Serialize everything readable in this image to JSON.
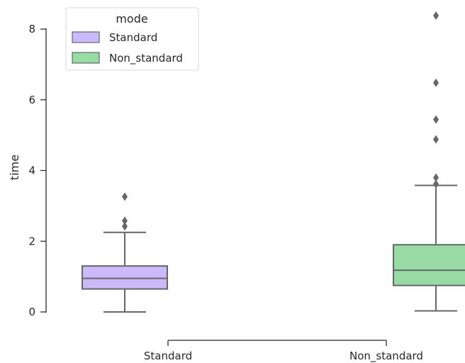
{
  "chart_data": {
    "type": "boxplot",
    "ylabel": "time",
    "ylim": [
      -0.3,
      8.6
    ],
    "yticks": [
      "0",
      "2",
      "4",
      "6",
      "8"
    ],
    "categories": [
      "Standard",
      "Non_standard"
    ],
    "legend": {
      "title": "mode",
      "placement": "top-left",
      "entries": [
        "Standard",
        "Non_standard"
      ]
    },
    "series": [
      {
        "name": "Standard",
        "color": "#cbbaf9",
        "whisker_low": 0.0,
        "q1": 0.65,
        "median": 0.95,
        "q3": 1.3,
        "whisker_high": 2.25,
        "outliers": [
          2.42,
          2.58,
          3.26
        ]
      },
      {
        "name": "Non_standard",
        "color": "#98dba4",
        "whisker_low": 0.03,
        "q1": 0.75,
        "median": 1.18,
        "q3": 1.9,
        "whisker_high": 3.58,
        "outliers": [
          3.62,
          3.8,
          4.88,
          5.44,
          6.48,
          8.38
        ]
      }
    ],
    "edge_color": "#666666"
  }
}
